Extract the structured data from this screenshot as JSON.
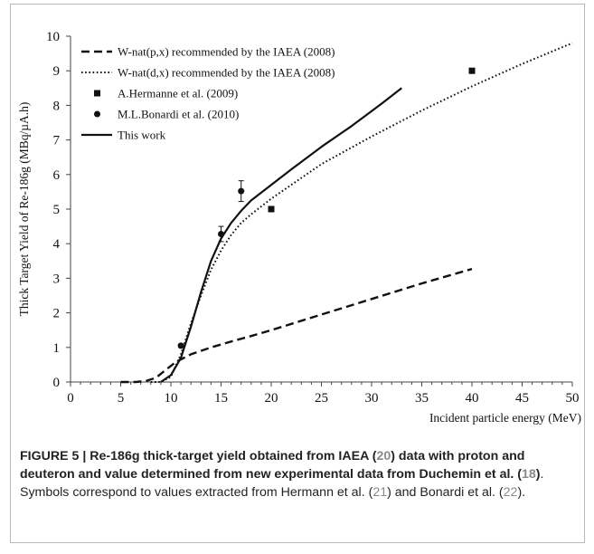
{
  "chart_data": {
    "type": "line",
    "xlabel": "Incident particle energy (MeV)",
    "ylabel": "Thick Target Yield of Re-186g (MBq/µA.h)",
    "xlim": [
      0,
      50
    ],
    "ylim": [
      0,
      10
    ],
    "x_ticks": [
      "0",
      "5",
      "10",
      "15",
      "20",
      "25",
      "30",
      "35",
      "40",
      "45",
      "50"
    ],
    "y_ticks": [
      "0",
      "1",
      "2",
      "3",
      "4",
      "5",
      "6",
      "7",
      "8",
      "9",
      "10"
    ],
    "grid": false,
    "legend_position": "top-left",
    "series": [
      {
        "name": "W-nat(p,x) recommended by the IAEA (2008)",
        "style": "dashed",
        "points": [
          [
            5,
            0
          ],
          [
            6.5,
            0
          ],
          [
            7.5,
            0.03
          ],
          [
            8.5,
            0.12
          ],
          [
            9.5,
            0.35
          ],
          [
            10.5,
            0.58
          ],
          [
            12,
            0.8
          ],
          [
            14,
            1.0
          ],
          [
            16,
            1.17
          ],
          [
            18,
            1.33
          ],
          [
            20,
            1.5
          ],
          [
            25,
            1.95
          ],
          [
            30,
            2.4
          ],
          [
            35,
            2.85
          ],
          [
            40,
            3.27
          ]
        ]
      },
      {
        "name": "W-nat(d,x) recommended by the IAEA (2008)",
        "style": "dotted",
        "points": [
          [
            8,
            0
          ],
          [
            9,
            0
          ],
          [
            10,
            0.15
          ],
          [
            11,
            0.8
          ],
          [
            12,
            1.7
          ],
          [
            13,
            2.5
          ],
          [
            14,
            3.25
          ],
          [
            15,
            3.8
          ],
          [
            16,
            4.25
          ],
          [
            17,
            4.6
          ],
          [
            18,
            4.85
          ],
          [
            20,
            5.3
          ],
          [
            25,
            6.3
          ],
          [
            30,
            7.1
          ],
          [
            35,
            7.85
          ],
          [
            40,
            8.55
          ],
          [
            45,
            9.2
          ],
          [
            50,
            9.8
          ]
        ]
      },
      {
        "name": "This work",
        "style": "solid",
        "points": [
          [
            9,
            0
          ],
          [
            10,
            0.2
          ],
          [
            11,
            0.7
          ],
          [
            12,
            1.6
          ],
          [
            13,
            2.6
          ],
          [
            14,
            3.5
          ],
          [
            15,
            4.15
          ],
          [
            16,
            4.6
          ],
          [
            17,
            4.95
          ],
          [
            18,
            5.25
          ],
          [
            20,
            5.7
          ],
          [
            22,
            6.15
          ],
          [
            25,
            6.8
          ],
          [
            28,
            7.4
          ],
          [
            31,
            8.05
          ],
          [
            33,
            8.5
          ]
        ]
      }
    ],
    "markers": [
      {
        "name": "A.Hermanne et al. (2009)",
        "symbol": "square",
        "points": [
          [
            20,
            5.0
          ],
          [
            40,
            9.0
          ]
        ]
      },
      {
        "name": "M.L.Bonardi et al. (2010)",
        "symbol": "circle",
        "points": [
          [
            11,
            1.05,
            0.05
          ],
          [
            15,
            4.28,
            0.22
          ],
          [
            17,
            5.52,
            0.3
          ]
        ]
      }
    ]
  },
  "caption": {
    "label": "FIGURE 5 | ",
    "bold_1": "Re-186g thick-target yield obtained from IAEA (",
    "ref_1": "20",
    "bold_2": ") data with proton and deuteron and value determined from new experimental data from Duchemin et al. (",
    "ref_2": "18",
    "bold_3": ")",
    "text_1": ". Symbols correspond to values extracted from Hermann et al. (",
    "ref_3": "21",
    "text_2": ") and Bonardi et al. (",
    "ref_4": "22",
    "text_3": ")."
  }
}
